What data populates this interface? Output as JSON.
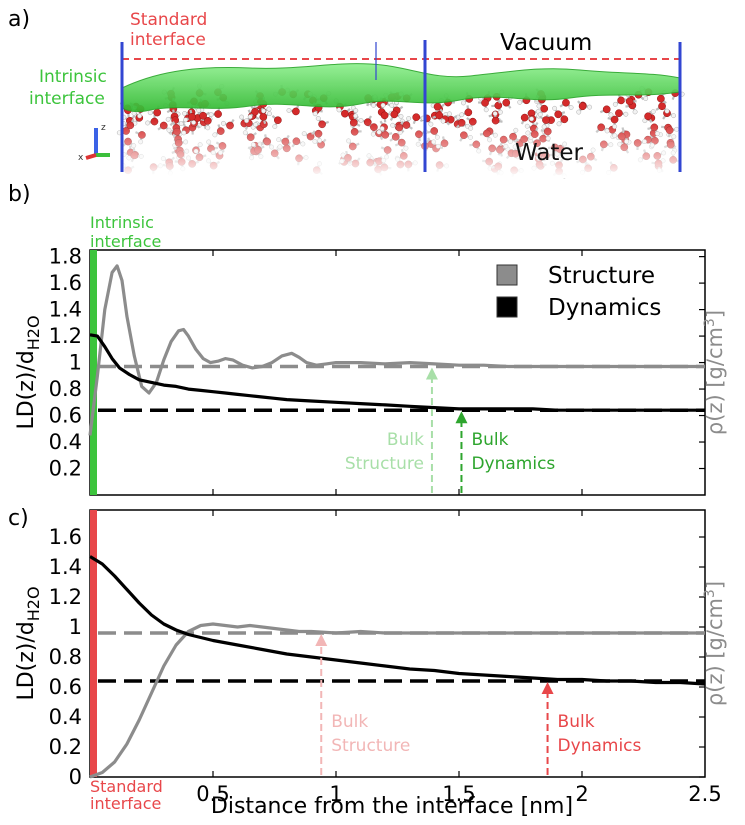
{
  "panel_labels": {
    "a": "a)",
    "b": "b)",
    "c": "c)"
  },
  "scene": {
    "standard_interface_label": [
      "Standard",
      "interface"
    ],
    "intrinsic_interface_label": [
      "Intrinsic",
      "interface"
    ],
    "vacuum_label": "Vacuum",
    "water_label": "Water",
    "colors": {
      "standard": "#e8474a",
      "intrinsic": "#3cc43c",
      "box": "#3246d2"
    }
  },
  "x_axis_label": "Distance from the interface [nm]",
  "y_axis_label": {
    "main": "LD(z)/d",
    "sub": "H2O"
  },
  "right_axis_label": {
    "main": "ρ(z) [g/cm",
    "sup": "3",
    "end": "]"
  },
  "legend": [
    {
      "label": "Structure",
      "color": "#8c8c8c"
    },
    {
      "label": "Dynamics",
      "color": "#000000"
    }
  ],
  "chart_data": [
    {
      "panel": "b",
      "type": "line",
      "reference": "Intrinsic interface",
      "reference_label": [
        "Intrinsic",
        "interface"
      ],
      "reference_color": "#3cc43c",
      "xlim": [
        0,
        2.5
      ],
      "ylim": [
        0,
        1.85
      ],
      "yticks": [
        0.2,
        0.4,
        0.6,
        0.8,
        1,
        1.2,
        1.4,
        1.6,
        1.8
      ],
      "ytick_labels": [
        "0.2",
        "0.4",
        "0.6",
        "0.8",
        "1",
        "1.2",
        "1.4",
        "1.6",
        "1.8"
      ],
      "series": [
        {
          "name": "Structure",
          "color": "#8c8c8c",
          "x": [
            0.0,
            0.03,
            0.06,
            0.09,
            0.11,
            0.13,
            0.15,
            0.18,
            0.21,
            0.24,
            0.27,
            0.3,
            0.33,
            0.36,
            0.38,
            0.4,
            0.43,
            0.46,
            0.49,
            0.52,
            0.55,
            0.58,
            0.62,
            0.66,
            0.7,
            0.74,
            0.78,
            0.82,
            0.85,
            0.88,
            0.92,
            0.96,
            1.0,
            1.1,
            1.2,
            1.3,
            1.4,
            1.5,
            1.6,
            1.7,
            1.8,
            1.9,
            2.0,
            2.1,
            2.2,
            2.3,
            2.4,
            2.5
          ],
          "y": [
            0.45,
            0.9,
            1.4,
            1.68,
            1.73,
            1.62,
            1.35,
            1.05,
            0.82,
            0.77,
            0.85,
            1.02,
            1.16,
            1.24,
            1.25,
            1.2,
            1.1,
            1.03,
            1.0,
            1.01,
            1.03,
            1.02,
            0.98,
            0.96,
            0.97,
            1.0,
            1.05,
            1.07,
            1.04,
            1.0,
            0.98,
            0.99,
            1.0,
            1.0,
            0.99,
            1.0,
            0.99,
            0.98,
            0.98,
            0.97,
            0.97,
            0.97,
            0.97,
            0.97,
            0.97,
            0.97,
            0.97,
            0.97
          ]
        },
        {
          "name": "Dynamics",
          "color": "#000000",
          "x": [
            0.0,
            0.03,
            0.06,
            0.09,
            0.12,
            0.16,
            0.2,
            0.25,
            0.3,
            0.35,
            0.4,
            0.45,
            0.5,
            0.55,
            0.6,
            0.65,
            0.7,
            0.75,
            0.8,
            0.9,
            1.0,
            1.1,
            1.2,
            1.3,
            1.4,
            1.5,
            1.6,
            1.7,
            1.8,
            1.9,
            2.0,
            2.1,
            2.2,
            2.3,
            2.4,
            2.5
          ],
          "y": [
            1.21,
            1.2,
            1.12,
            1.03,
            0.96,
            0.91,
            0.87,
            0.85,
            0.83,
            0.82,
            0.8,
            0.79,
            0.78,
            0.77,
            0.76,
            0.75,
            0.74,
            0.73,
            0.72,
            0.71,
            0.7,
            0.69,
            0.68,
            0.67,
            0.66,
            0.65,
            0.65,
            0.65,
            0.65,
            0.64,
            0.64,
            0.64,
            0.64,
            0.64,
            0.64,
            0.64
          ]
        }
      ],
      "bulk_levels": {
        "structure": 0.97,
        "dynamics": 0.64
      },
      "annotations": [
        {
          "lines": [
            "Bulk",
            "Structure"
          ],
          "x": 1.39,
          "y_arrow": 0.97,
          "color": "#a8dfa8",
          "side": "left"
        },
        {
          "lines": [
            "Bulk",
            "Dynamics"
          ],
          "x": 1.51,
          "y_arrow": 0.64,
          "color": "#2ea52e",
          "side": "right"
        }
      ]
    },
    {
      "panel": "c",
      "type": "line",
      "reference": "Standard interface",
      "reference_label": [
        "Standard",
        "interface"
      ],
      "reference_color": "#e8474a",
      "xlim": [
        0,
        2.5
      ],
      "ylim": [
        0,
        1.78
      ],
      "yticks": [
        0,
        0.2,
        0.4,
        0.6,
        0.8,
        1,
        1.2,
        1.4,
        1.6
      ],
      "ytick_labels": [
        "0",
        "0.2",
        "0.4",
        "0.6",
        "0.8",
        "1",
        "1.2",
        "1.4",
        "1.6"
      ],
      "xticks": [
        0.5,
        1,
        1.5,
        2,
        2.5
      ],
      "xtick_labels": [
        "0.5",
        "1",
        "1.5",
        "2",
        "2.5"
      ],
      "series": [
        {
          "name": "Structure",
          "color": "#8c8c8c",
          "x": [
            0.0,
            0.05,
            0.1,
            0.15,
            0.2,
            0.25,
            0.3,
            0.35,
            0.4,
            0.45,
            0.5,
            0.55,
            0.6,
            0.65,
            0.7,
            0.75,
            0.8,
            0.85,
            0.9,
            1.0,
            1.1,
            1.2,
            1.3,
            1.4,
            1.5,
            1.6,
            1.7,
            1.8,
            1.9,
            2.0,
            2.1,
            2.2,
            2.3,
            2.4,
            2.5
          ],
          "y": [
            0.0,
            0.03,
            0.1,
            0.22,
            0.38,
            0.56,
            0.74,
            0.88,
            0.97,
            1.01,
            1.02,
            1.01,
            1.0,
            1.01,
            1.0,
            0.99,
            0.98,
            0.97,
            0.97,
            0.96,
            0.97,
            0.96,
            0.96,
            0.96,
            0.96,
            0.96,
            0.96,
            0.96,
            0.96,
            0.96,
            0.96,
            0.96,
            0.96,
            0.96,
            0.96
          ]
        },
        {
          "name": "Dynamics",
          "color": "#000000",
          "x": [
            0.0,
            0.05,
            0.1,
            0.15,
            0.2,
            0.25,
            0.3,
            0.35,
            0.4,
            0.45,
            0.5,
            0.6,
            0.7,
            0.8,
            0.9,
            1.0,
            1.1,
            1.2,
            1.3,
            1.4,
            1.5,
            1.6,
            1.7,
            1.8,
            1.9,
            2.0,
            2.1,
            2.2,
            2.3,
            2.4,
            2.5
          ],
          "y": [
            1.47,
            1.42,
            1.34,
            1.25,
            1.16,
            1.08,
            1.02,
            0.98,
            0.95,
            0.93,
            0.91,
            0.88,
            0.85,
            0.82,
            0.8,
            0.78,
            0.76,
            0.74,
            0.72,
            0.71,
            0.69,
            0.68,
            0.67,
            0.66,
            0.65,
            0.65,
            0.64,
            0.64,
            0.63,
            0.63,
            0.62
          ]
        }
      ],
      "bulk_levels": {
        "structure": 0.96,
        "dynamics": 0.64
      },
      "annotations": [
        {
          "lines": [
            "Bulk",
            "Structure"
          ],
          "x": 0.94,
          "y_arrow": 0.96,
          "color": "#f2b6b6",
          "side": "right"
        },
        {
          "lines": [
            "Bulk",
            "Dynamics"
          ],
          "x": 1.86,
          "y_arrow": 0.64,
          "color": "#e8474a",
          "side": "right"
        }
      ]
    }
  ]
}
